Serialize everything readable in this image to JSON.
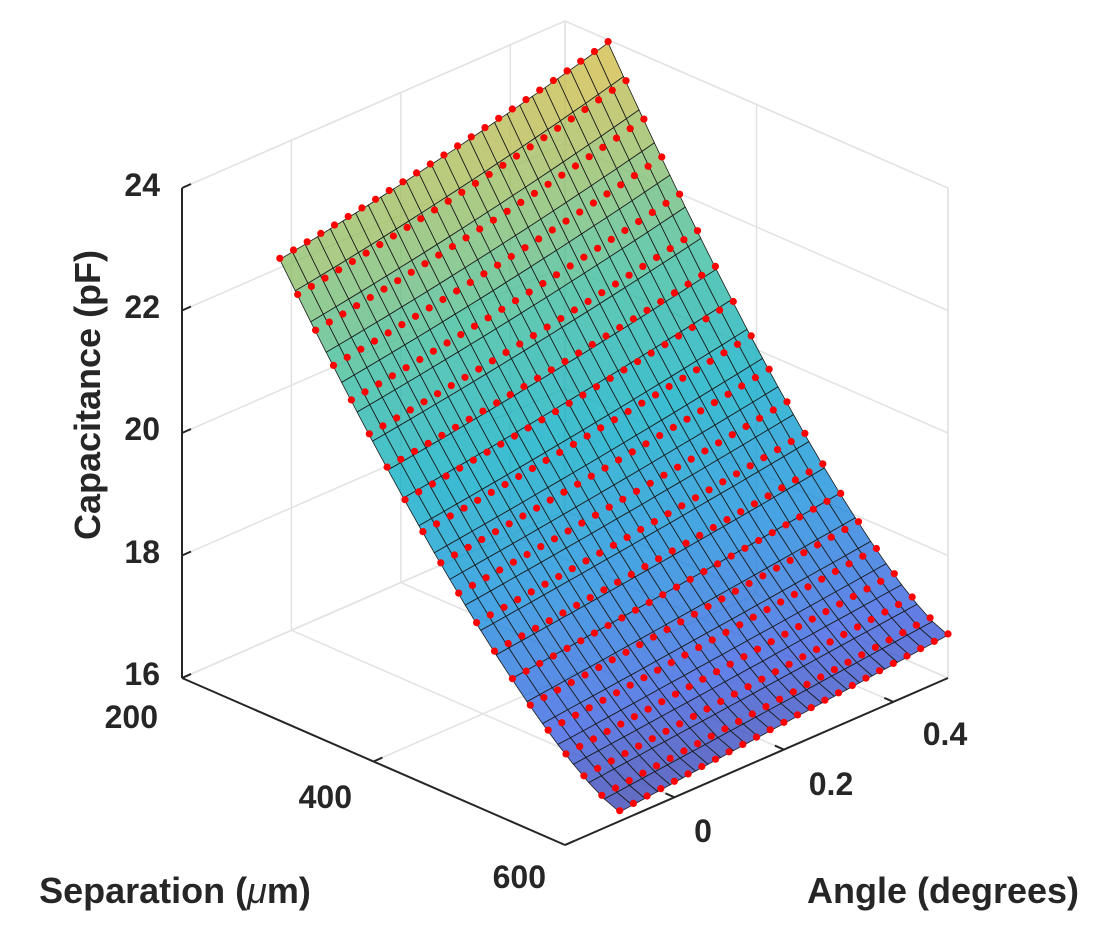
{
  "chart_data": {
    "type": "surface3d",
    "xlabel": "Angle (degrees)",
    "ylabel_pre": "Separation (",
    "ylabel_mu": "μ",
    "ylabel_post": "m)",
    "zlabel": "Capacitance (pF)",
    "xlim": [
      -0.2,
      0.5
    ],
    "ylim": [
      200,
      600
    ],
    "zlim": [
      16,
      24
    ],
    "xticks": [
      "0",
      "0.2",
      "0.4"
    ],
    "yticks": [
      "200",
      "400",
      "600"
    ],
    "zticks": [
      "16",
      "18",
      "20",
      "22",
      "24"
    ],
    "grid": true,
    "surface_colormap": "parula",
    "point_color": "#ff0000",
    "x_range": [
      -0.1,
      0.5
    ],
    "y_range": [
      245,
      600
    ],
    "corner_values": {
      "x_min_y_min": 22.75,
      "x_max_y_min": 23.95,
      "x_min_y_max": 16.15,
      "x_max_y_max": 16.7
    },
    "surface_rows": [
      {
        "separation": 245,
        "capacitance": [
          22.75,
          22.72,
          22.72,
          22.74,
          22.79,
          22.85,
          22.94,
          23.06,
          23.2,
          23.38,
          23.58,
          23.95
        ]
      },
      {
        "separation": 300,
        "capacitance": [
          20.85,
          20.85,
          20.86,
          20.9,
          20.95,
          21.02,
          21.12,
          21.24,
          21.38,
          21.55,
          21.74,
          22.05
        ]
      },
      {
        "separation": 400,
        "capacitance": [
          18.45,
          18.46,
          18.48,
          18.52,
          18.57,
          18.64,
          18.72,
          18.82,
          18.93,
          19.06,
          19.2,
          19.4
        ]
      },
      {
        "separation": 500,
        "capacitance": [
          17.05,
          17.06,
          17.08,
          17.11,
          17.15,
          17.2,
          17.26,
          17.33,
          17.41,
          17.5,
          17.6,
          17.75
        ]
      },
      {
        "separation": 600,
        "capacitance": [
          16.15,
          16.16,
          16.17,
          16.19,
          16.22,
          16.26,
          16.3,
          16.35,
          16.41,
          16.48,
          16.56,
          16.7
        ]
      }
    ]
  }
}
